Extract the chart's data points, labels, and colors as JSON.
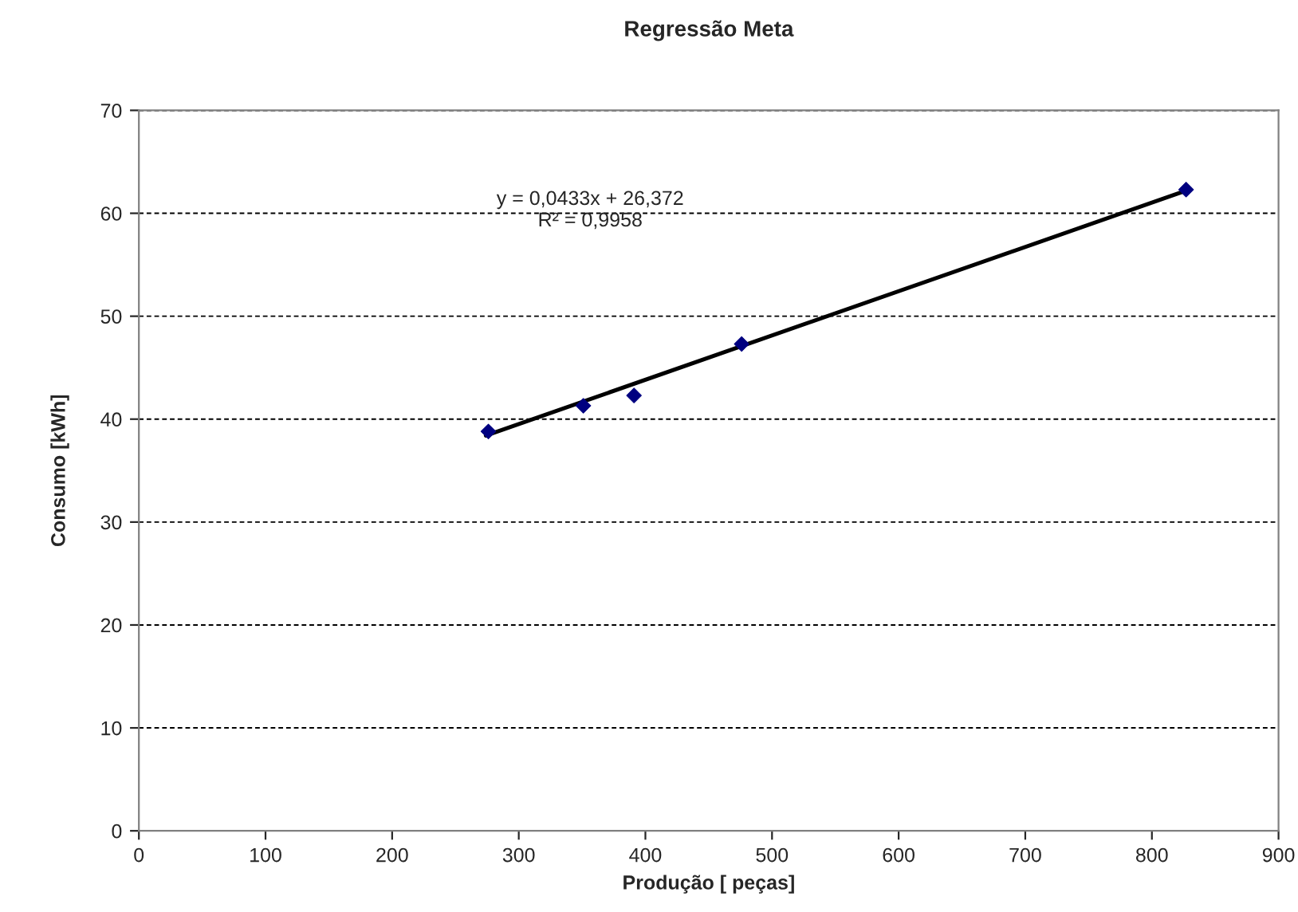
{
  "chart_data": {
    "type": "scatter",
    "title": "Regressão Meta",
    "xlabel": "Produção [ peças]",
    "ylabel": "Consumo [kWh]",
    "xlim": [
      0,
      900
    ],
    "xticks": [
      0,
      100,
      200,
      300,
      400,
      500,
      600,
      700,
      800,
      900
    ],
    "ylim": [
      0,
      70
    ],
    "yticks": [
      0,
      10,
      20,
      30,
      40,
      50,
      60,
      70
    ],
    "grid": "y",
    "legend": false,
    "marker": "diamond",
    "series": [
      {
        "color": "#000080",
        "x": [
          276,
          351,
          391,
          476,
          827
        ],
        "values": [
          38.8,
          41.3,
          42.3,
          47.3,
          62.3
        ]
      },
      {
        "type": "line",
        "color": "#000000",
        "x": [
          274,
          827
        ],
        "values": [
          38.4,
          62.2
        ],
        "line_style": "solid",
        "marker": "none"
      }
    ],
    "annotations": [
      "y = 0,0433x + 26,372",
      "R² = 0,9958"
    ]
  }
}
